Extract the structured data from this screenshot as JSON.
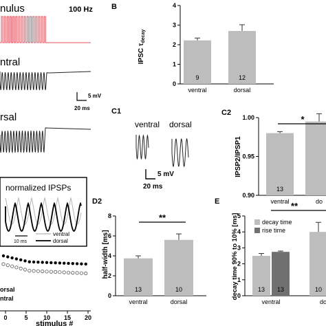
{
  "panels": {
    "A": {
      "stimulus_label": "nulus",
      "freq_label": "100 Hz",
      "ventral_label": "ntral",
      "dorsal_label": "rsal",
      "scalebar_mv": "5 mV",
      "scalebar_ms": "20 ms",
      "stim_color": "#e0505a"
    },
    "C1": {
      "panel_label": "C1",
      "ventral_label": "ventral",
      "dorsal_label": "dorsal",
      "scalebar_mv": "5 mV",
      "scalebar_ms": "20 ms"
    },
    "D1": {
      "inset_title": "normalized IPSPs",
      "scalebar_ms": "10 ms",
      "legend_ventral": "ventral",
      "legend_dorsal": "dorsal",
      "xlabel": "stimulus #",
      "xticks": [
        "0",
        "5",
        "10",
        "15",
        "20"
      ],
      "side_labels": [
        "orsal",
        "ntral"
      ]
    }
  },
  "chart_data": [
    {
      "panel_label": "B",
      "type": "bar",
      "categories": [
        "ventral",
        "dorsal"
      ],
      "values": [
        2.22,
        2.7
      ],
      "errors": [
        0.12,
        0.32
      ],
      "n": [
        "9",
        "12"
      ],
      "ylabel_prefix": "IPSC τ",
      "ylabel_sub": "decay",
      "ylim": [
        0,
        4
      ],
      "yticks": [
        "0",
        "1",
        "2",
        "3",
        "4"
      ],
      "color": "#bdbdbd"
    },
    {
      "panel_label": "C2",
      "type": "bar",
      "categories": [
        "ventral",
        "do"
      ],
      "values": [
        0.98,
        0.995
      ],
      "errors": [
        0.002,
        0.01
      ],
      "n": [
        "13"
      ],
      "ylabel": "IPSP2/IPSP1",
      "ylim": [
        0.9,
        1.0
      ],
      "yticks": [
        "0.90",
        "0.95",
        "1.00"
      ],
      "significance": "*",
      "color": "#bdbdbd"
    },
    {
      "panel_label": "D2",
      "type": "bar",
      "categories": [
        "ventral",
        "dorsal"
      ],
      "values": [
        3.75,
        5.6
      ],
      "errors": [
        0.25,
        0.6
      ],
      "n": [
        "13",
        "10"
      ],
      "ylabel": "half-width [ms]",
      "ylim": [
        0,
        8
      ],
      "yticks": [
        "0",
        "2",
        "4",
        "6",
        "8"
      ],
      "significance": "**",
      "color": "#bdbdbd"
    },
    {
      "panel_label": "E",
      "type": "bar",
      "categories": [
        "ventral",
        "do"
      ],
      "series": [
        {
          "name": "decay time",
          "values": [
            2.5,
            4.0
          ],
          "errors": [
            0.15,
            0.6
          ],
          "color": "#bdbdbd"
        },
        {
          "name": "rise time",
          "values": [
            2.75,
            null
          ],
          "errors": [
            0.05,
            null
          ],
          "color": "#707070"
        }
      ],
      "n_labels": [
        "13",
        "13",
        "10"
      ],
      "ylabel": "decay time 90% to 10% [ms]",
      "ylim": [
        0,
        5
      ],
      "yticks": [
        "0",
        "1",
        "2",
        "3",
        "4",
        "5"
      ],
      "significance": "**"
    }
  ]
}
